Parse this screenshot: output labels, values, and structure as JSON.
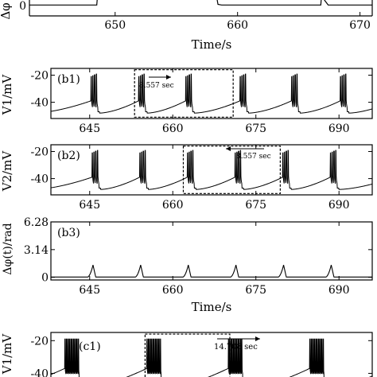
{
  "colors": {
    "line": "#000000",
    "frame": "#000000",
    "background": "#ffffff"
  },
  "chart_data": [
    {
      "id": "a",
      "type": "line",
      "ylabel": "Δφ",
      "xlabel": "Time/s",
      "xlim": [
        643,
        671
      ],
      "xticks": [
        650,
        660,
        670
      ],
      "yticks": [
        0
      ],
      "ylim": [
        -0.5,
        3
      ],
      "x": [
        643,
        648.5,
        648.6,
        648.8,
        649.1,
        658.1,
        658.2,
        658.4,
        658.7,
        666.8,
        666.9,
        667.1,
        667.4,
        671
      ],
      "y": [
        0,
        0,
        1.2,
        2.8,
        2.6,
        2.5,
        1.2,
        0.05,
        0,
        0,
        1.3,
        0.4,
        0,
        0
      ]
    },
    {
      "id": "b1",
      "type": "line",
      "panel_label": "(b1)",
      "ylabel": "V1/mV",
      "xlim": [
        638,
        696
      ],
      "ylim": [
        -52,
        -15
      ],
      "xticks": [
        645,
        660,
        675,
        690
      ],
      "yticks": [
        -20,
        -40
      ],
      "burst_times": [
        645.2,
        653.8,
        662.3,
        672.1,
        681.4,
        690.2
      ],
      "burst_peak_mV": -20,
      "baseline_start_mV": -47,
      "baseline_end_mV": -39,
      "annotation": {
        "text": "8.557 sec",
        "arrow": "right",
        "box_x": [
          653.1,
          670.9
        ],
        "box_y": [
          -51,
          -16
        ]
      }
    },
    {
      "id": "b2",
      "type": "line",
      "panel_label": "(b2)",
      "ylabel": "V2/mV",
      "xlim": [
        638,
        696
      ],
      "ylim": [
        -52,
        -15
      ],
      "xticks": [
        645,
        660,
        675,
        690
      ],
      "yticks": [
        -20,
        -40
      ],
      "burst_times": [
        645.4,
        654.0,
        662.6,
        671.2,
        679.8,
        688.4
      ],
      "burst_peak_mV": -20,
      "baseline_start_mV": -47,
      "baseline_end_mV": -39,
      "annotation": {
        "text": "8.557 sec",
        "arrow": "left",
        "box_x": [
          661.9,
          679.4
        ],
        "box_y": [
          -51,
          -16
        ]
      }
    },
    {
      "id": "b3",
      "type": "line",
      "panel_label": "(b3)",
      "ylabel": "Δφ(t)/rad",
      "xlabel": "Time/s",
      "xlim": [
        638,
        696
      ],
      "ylim": [
        -0.3,
        6.28
      ],
      "xticks": [
        645,
        660,
        675,
        690
      ],
      "yticks": [
        0,
        3.14,
        6.28
      ],
      "ytick_labels": [
        "0",
        "3.14",
        "6.28"
      ],
      "peak_times": [
        645.6,
        654.2,
        662.8,
        671.4,
        680.0,
        688.6
      ],
      "peak_value": 1.4
    },
    {
      "id": "c1",
      "type": "line",
      "panel_label": "(c1)",
      "ylabel": "V1/mV",
      "xlim": [
        638,
        696
      ],
      "ylim": [
        -50,
        -15
      ],
      "yticks": [
        -20,
        -40
      ],
      "burst_times": [
        640.5,
        655.3,
        670.0,
        684.7
      ],
      "burst_peak_mV": -19,
      "annotation": {
        "text": "14.708 sec",
        "arrow": "right",
        "box_x": [
          655.0,
          670.3
        ],
        "box_y": [
          -49,
          -16
        ]
      }
    }
  ]
}
